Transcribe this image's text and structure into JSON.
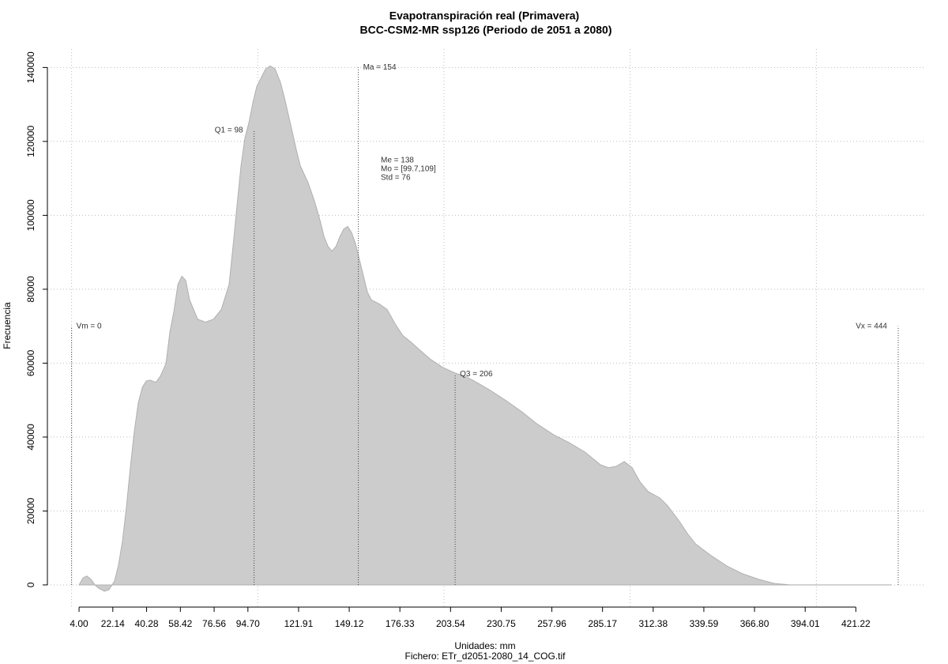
{
  "chart_data": {
    "type": "area",
    "title": "Evapotranspiración real (Primavera)",
    "subtitle": "BCC-CSM2-MR ssp126 (Periodo de 2051 a 2080)",
    "x_label": "Unidades: mm",
    "y_label": "Frecuencia",
    "footer": "Fichero: ETr_d2051-2080_14_COG.tif",
    "color": "#cccccc",
    "x": [
      4.0,
      6.1,
      8.2,
      10.4,
      12.5,
      14.6,
      17.6,
      20.1,
      23.1,
      25.2,
      27.3,
      29.5,
      31.6,
      33.7,
      35.8,
      38.0,
      40.1,
      42.2,
      45.2,
      47.7,
      50.7,
      52.8,
      54.9,
      57.1,
      59.2,
      61.3,
      63.4,
      67.7,
      71.9,
      76.2,
      80.4,
      84.6,
      86.8,
      88.9,
      91.0,
      93.1,
      95.3,
      97.4,
      99.5,
      101.6,
      104.2,
      106.7,
      109.3,
      112.2,
      114.4,
      117.8,
      120.7,
      122.8,
      127.1,
      130.5,
      133.5,
      135.6,
      137.7,
      139.8,
      142.0,
      144.1,
      146.2,
      148.3,
      150.4,
      152.6,
      154.7,
      156.8,
      158.9,
      161.0,
      165.3,
      169.5,
      173.8,
      178.0,
      182.3,
      186.5,
      192.9,
      199.2,
      205.6,
      212.0,
      218.3,
      224.7,
      233.2,
      241.7,
      250.2,
      258.7,
      267.2,
      275.6,
      284.1,
      288.4,
      292.6,
      296.9,
      301.1,
      305.4,
      309.6,
      316.0,
      320.2,
      326.6,
      330.8,
      335.1,
      343.6,
      352.0,
      360.5,
      369.0,
      377.5,
      386.0,
      407.2,
      440.3
    ],
    "values": [
      0,
      1900,
      2400,
      1500,
      0,
      -900,
      -1700,
      -1300,
      1100,
      5400,
      11800,
      21400,
      32100,
      41700,
      49200,
      53500,
      55200,
      55400,
      54800,
      56500,
      59900,
      68500,
      73900,
      81300,
      83500,
      82400,
      77100,
      71900,
      71100,
      71900,
      74500,
      81300,
      92100,
      102800,
      113500,
      120900,
      125200,
      130600,
      134900,
      137000,
      139600,
      140400,
      139600,
      135900,
      131700,
      124200,
      117700,
      113500,
      108700,
      103800,
      98500,
      94200,
      91600,
      90300,
      91600,
      94200,
      96300,
      97000,
      95300,
      92100,
      87800,
      83500,
      79200,
      77100,
      76000,
      74500,
      70600,
      67400,
      65700,
      63800,
      61000,
      58900,
      57400,
      56300,
      54600,
      52700,
      49900,
      46900,
      43500,
      40700,
      38500,
      36000,
      32500,
      31700,
      32100,
      33400,
      31700,
      27800,
      25300,
      23500,
      21400,
      17100,
      13900,
      11100,
      7900,
      5100,
      3000,
      1500,
      400,
      0,
      0,
      0
    ],
    "xlim": [
      -13,
      458
    ],
    "ylim": [
      -6000,
      145000
    ],
    "xticks": [
      {
        "value": 4,
        "label": "4.00"
      },
      22.14,
      40.28,
      58.42,
      76.56,
      {
        "value": 94.7,
        "label": "94.70"
      },
      121.91,
      149.12,
      176.33,
      203.54,
      230.75,
      257.96,
      285.17,
      312.38,
      339.59,
      {
        "value": 366.8,
        "label": "366.80"
      },
      394.01,
      421.22
    ],
    "yticks": [
      0,
      20000,
      40000,
      60000,
      80000,
      100000,
      120000,
      140000
    ],
    "xgrid": [
      0,
      100,
      200,
      300,
      400
    ],
    "grid": true,
    "markers": [
      {
        "label": "Vm = 0",
        "x": 0,
        "top": 70000
      },
      {
        "label": "Q1 = 98",
        "x": 98,
        "top": 123000
      },
      {
        "label": "Ma = 154",
        "x": 154,
        "top": 140000
      },
      {
        "label": "Q3 = 206",
        "x": 206,
        "top": 57000
      },
      {
        "label": "Vx = 444",
        "x": 444,
        "top": 70000
      }
    ],
    "stats": [
      "Me = 138",
      "Mo = [99.7,109]",
      "Std = 76"
    ]
  }
}
